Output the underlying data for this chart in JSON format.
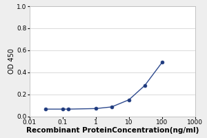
{
  "x_values": [
    0.031,
    0.1,
    0.15,
    1.0,
    3.0,
    10.0,
    30.0,
    100.0
  ],
  "y_values": [
    0.065,
    0.065,
    0.065,
    0.07,
    0.085,
    0.15,
    0.28,
    0.49
  ],
  "xlabel": "Recombinant ProteinConcentration(ng/ml)",
  "ylabel": "OD 450",
  "xlim": [
    0.01,
    1000
  ],
  "ylim": [
    0,
    1
  ],
  "yticks": [
    0,
    0.2,
    0.4,
    0.6,
    0.8,
    1
  ],
  "xticks": [
    0.01,
    0.1,
    1,
    10,
    100,
    1000
  ],
  "xtick_labels": [
    "0.01",
    "0.1",
    "1",
    "10",
    "100",
    "1000"
  ],
  "line_color": "#2e4a8e",
  "marker_color": "#1e3a7e",
  "background_color": "#eeeeee",
  "plot_bg_color": "#ffffff",
  "grid_color": "#cccccc",
  "ylabel_fontsize": 7,
  "xlabel_fontsize": 7.5,
  "tick_fontsize": 6.5
}
